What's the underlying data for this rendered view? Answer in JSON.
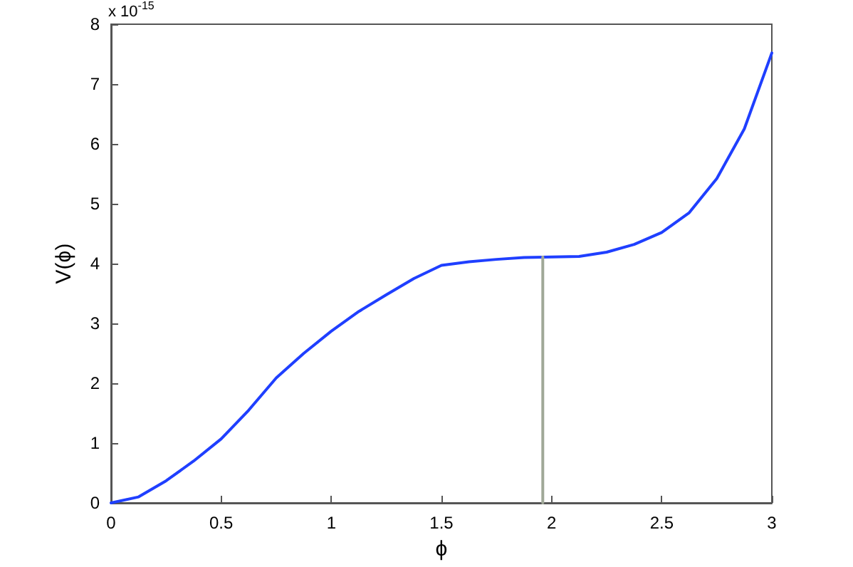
{
  "chart_data": {
    "type": "line",
    "xlabel": "ϕ",
    "ylabel": "V(ϕ)",
    "annotations": [
      "x 10$^{-15}$"
    ],
    "xlim": [
      0,
      3
    ],
    "xticks": [
      0,
      0.5,
      1,
      1.5,
      2,
      2.5,
      3
    ],
    "ylim": [
      0,
      8
    ],
    "yticks": [
      0,
      1,
      2,
      3,
      4,
      5,
      6,
      7,
      8
    ],
    "grid": false,
    "marker": "none",
    "line_style": "solid",
    "series": [
      {
        "color": "#1f3fff",
        "x": [
          0,
          0.125,
          0.25,
          0.375,
          0.5,
          0.625,
          0.75,
          0.875,
          1,
          1.125,
          1.25,
          1.375,
          1.5,
          1.625,
          1.75,
          1.875,
          2,
          2.125,
          2.25,
          2.375,
          2.5,
          2.625,
          2.75,
          2.875,
          3
        ],
        "values": [
          0,
          0.1,
          0.37,
          0.7,
          1.07,
          1.55,
          2.09,
          2.5,
          2.87,
          3.2,
          3.48,
          3.75,
          3.97,
          4.03,
          4.07,
          4.1,
          4.11,
          4.12,
          4.19,
          4.32,
          4.52,
          4.85,
          5.42,
          6.25,
          7.52
        ]
      },
      {
        "color": "#a0a898",
        "x": [
          1.96,
          1.96
        ],
        "values": [
          0,
          4.11
        ]
      }
    ]
  }
}
